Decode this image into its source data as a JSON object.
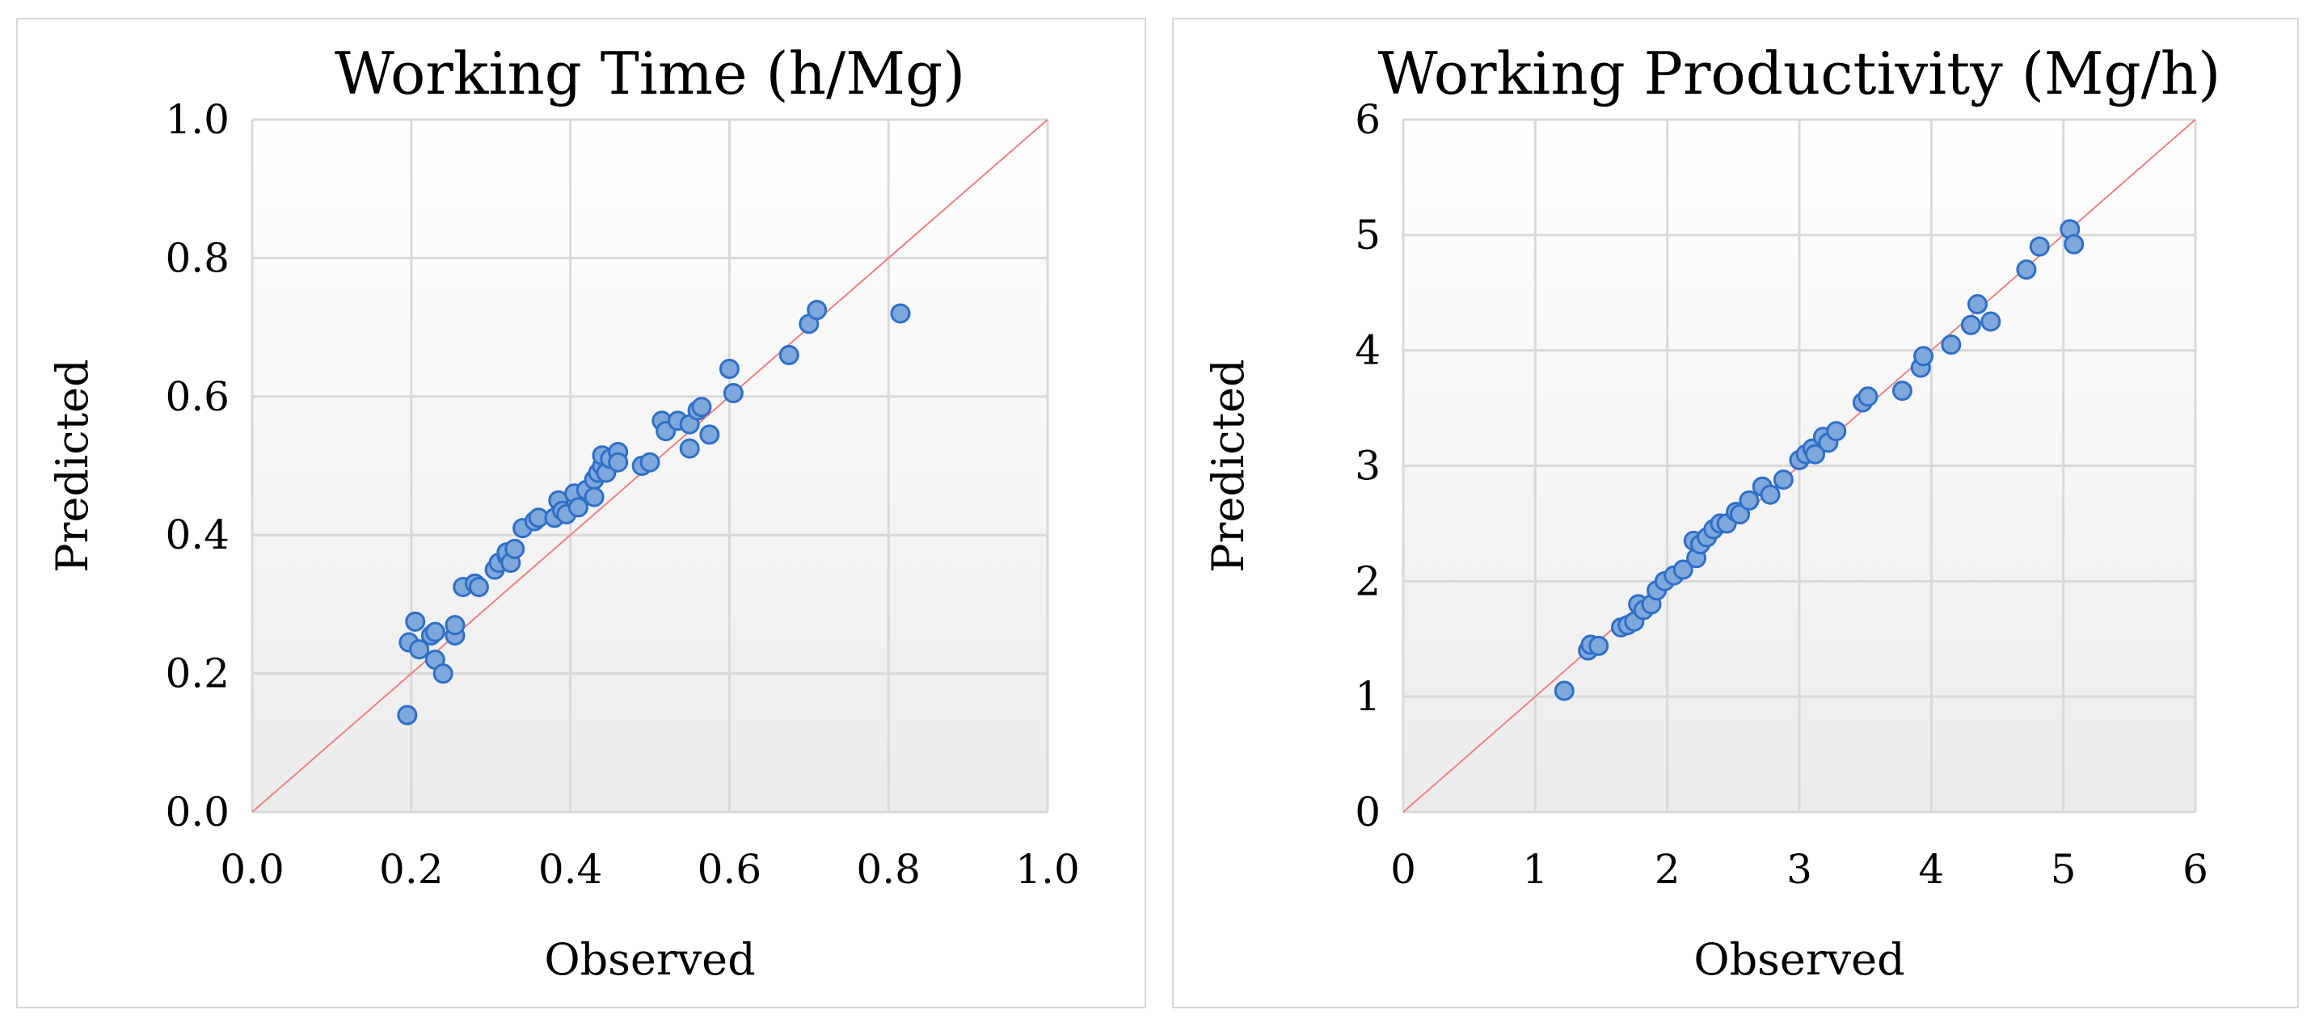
{
  "chart_data": [
    {
      "type": "scatter",
      "title": "Working Time (h/Mg)",
      "xlabel": "Observed",
      "ylabel": "Predicted",
      "xlim": [
        0.0,
        1.0
      ],
      "ylim": [
        0.0,
        1.0
      ],
      "xticks": [
        "0.0",
        "0.2",
        "0.4",
        "0.6",
        "0.8",
        "1.0"
      ],
      "yticks": [
        "0.0",
        "0.2",
        "0.4",
        "0.6",
        "0.8",
        "1.0"
      ],
      "grid": true,
      "reference_line": "y = x",
      "colors": {
        "marker_fill": "#7ea7db",
        "marker_edge": "#2e6fc8",
        "reference_line": "#f08080",
        "grid": "#d9d9d9"
      },
      "x": [
        0.195,
        0.197,
        0.205,
        0.21,
        0.225,
        0.23,
        0.23,
        0.24,
        0.255,
        0.255,
        0.265,
        0.28,
        0.285,
        0.305,
        0.31,
        0.32,
        0.32,
        0.325,
        0.33,
        0.34,
        0.355,
        0.36,
        0.38,
        0.385,
        0.39,
        0.395,
        0.405,
        0.41,
        0.42,
        0.43,
        0.43,
        0.435,
        0.44,
        0.44,
        0.445,
        0.45,
        0.46,
        0.46,
        0.49,
        0.5,
        0.515,
        0.52,
        0.535,
        0.55,
        0.55,
        0.56,
        0.565,
        0.575,
        0.6,
        0.605,
        0.675,
        0.7,
        0.71,
        0.815
      ],
      "y": [
        0.14,
        0.245,
        0.275,
        0.235,
        0.255,
        0.26,
        0.22,
        0.2,
        0.255,
        0.27,
        0.325,
        0.33,
        0.325,
        0.35,
        0.36,
        0.37,
        0.375,
        0.36,
        0.38,
        0.41,
        0.42,
        0.425,
        0.425,
        0.45,
        0.435,
        0.43,
        0.46,
        0.44,
        0.465,
        0.48,
        0.455,
        0.49,
        0.5,
        0.515,
        0.49,
        0.51,
        0.52,
        0.505,
        0.5,
        0.505,
        0.565,
        0.55,
        0.565,
        0.525,
        0.56,
        0.58,
        0.585,
        0.545,
        0.64,
        0.605,
        0.66,
        0.705,
        0.725,
        0.72
      ]
    },
    {
      "type": "scatter",
      "title": "Working Productivity (Mg/h)",
      "xlabel": "Observed",
      "ylabel": "Predicted",
      "xlim": [
        0,
        6
      ],
      "ylim": [
        0,
        6
      ],
      "xticks": [
        "0",
        "1",
        "2",
        "3",
        "4",
        "5",
        "6"
      ],
      "yticks": [
        "0",
        "1",
        "2",
        "3",
        "4",
        "5",
        "6"
      ],
      "grid": true,
      "reference_line": "y = x",
      "colors": {
        "marker_fill": "#7ea7db",
        "marker_edge": "#2e6fc8",
        "reference_line": "#f08080",
        "grid": "#d9d9d9"
      },
      "x": [
        1.22,
        1.4,
        1.42,
        1.48,
        1.65,
        1.7,
        1.75,
        1.78,
        1.82,
        1.88,
        1.92,
        1.98,
        2.05,
        2.12,
        2.2,
        2.22,
        2.25,
        2.3,
        2.35,
        2.4,
        2.45,
        2.52,
        2.55,
        2.62,
        2.72,
        2.78,
        2.88,
        3.0,
        3.05,
        3.1,
        3.12,
        3.18,
        3.22,
        3.28,
        3.48,
        3.52,
        3.78,
        3.92,
        3.94,
        4.15,
        4.3,
        4.35,
        4.45,
        4.72,
        4.82,
        5.05,
        5.08
      ],
      "y": [
        1.05,
        1.4,
        1.45,
        1.44,
        1.6,
        1.62,
        1.65,
        1.8,
        1.75,
        1.8,
        1.92,
        2.0,
        2.05,
        2.1,
        2.35,
        2.2,
        2.32,
        2.38,
        2.45,
        2.5,
        2.5,
        2.6,
        2.58,
        2.7,
        2.82,
        2.75,
        2.88,
        3.05,
        3.1,
        3.15,
        3.1,
        3.25,
        3.2,
        3.3,
        3.55,
        3.6,
        3.65,
        3.85,
        3.95,
        4.05,
        4.22,
        4.4,
        4.25,
        4.7,
        4.9,
        5.05,
        4.92
      ]
    }
  ]
}
